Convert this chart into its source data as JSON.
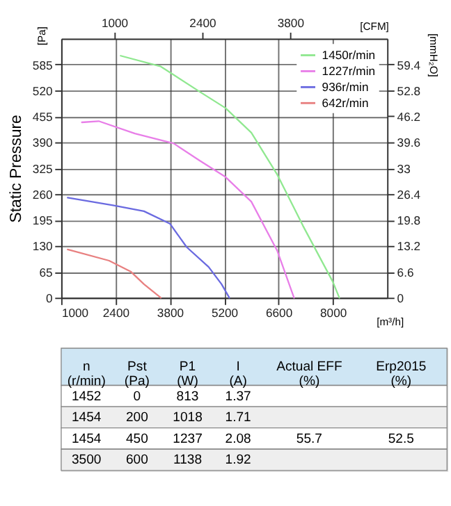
{
  "chart_data": {
    "type": "line",
    "ylabel": "Static Pressure",
    "xlabel": "[m³/h]",
    "x2label": "[CFM]",
    "y2label": "[mmH₂O]",
    "legend_title": "[Pa]",
    "xlim": [
      1000,
      9400
    ],
    "xticks": [
      1000,
      2400,
      3800,
      5200,
      6600,
      8000
    ],
    "x2lim": [
      156,
      5344
    ],
    "x2ticks": [
      1000,
      2400,
      3800
    ],
    "ylim": [
      0,
      650
    ],
    "yticks": [
      0,
      65,
      130,
      195,
      260,
      325,
      390,
      455,
      520,
      585
    ],
    "y2lim": [
      0,
      66
    ],
    "y2ticks": [
      0,
      6.6,
      13.2,
      19.8,
      26.4,
      33,
      39.6,
      46.2,
      52.8,
      59.4
    ],
    "grid": true,
    "legend": "top right",
    "line_style": "solid",
    "marker": "none",
    "series": [
      {
        "name": "1450r/min",
        "color": "#90e890",
        "x": [
          2533,
          3567,
          4567,
          5233,
          5900,
          6567,
          7233,
          8000,
          8167
        ],
        "values": [
          607,
          580,
          517,
          476,
          414,
          309,
          180,
          40,
          0
        ]
      },
      {
        "name": "1227r/min",
        "color": "#e87ee8",
        "x": [
          1533,
          1967,
          2900,
          3900,
          4567,
          5233,
          5900,
          6567,
          7000
        ],
        "values": [
          440,
          443,
          412,
          387,
          344,
          303,
          241,
          118,
          0
        ]
      },
      {
        "name": "936r/min",
        "color": "#6a6ae0",
        "x": [
          1167,
          2333,
          3133,
          3800,
          4233,
          4800,
          5133,
          5333
        ],
        "values": [
          251,
          232,
          217,
          186,
          127,
          77,
          34,
          0
        ]
      },
      {
        "name": "642r/min",
        "color": "#e88080",
        "x": [
          1167,
          2233,
          2800,
          3133,
          3567
        ],
        "values": [
          121,
          93,
          65,
          34,
          0
        ]
      }
    ],
    "annotations": [
      "n (r/min)",
      "Pst (Pa)",
      "P1 (W)",
      "I (A)",
      "Actual EFF (%)",
      "Erp2015 (%)",
      "1452 0 813 1.37",
      "1454 200 1018 1.71",
      "1454 450 1237 2.08 55.7 52.5",
      "3500 600 1138 1.92"
    ]
  }
}
